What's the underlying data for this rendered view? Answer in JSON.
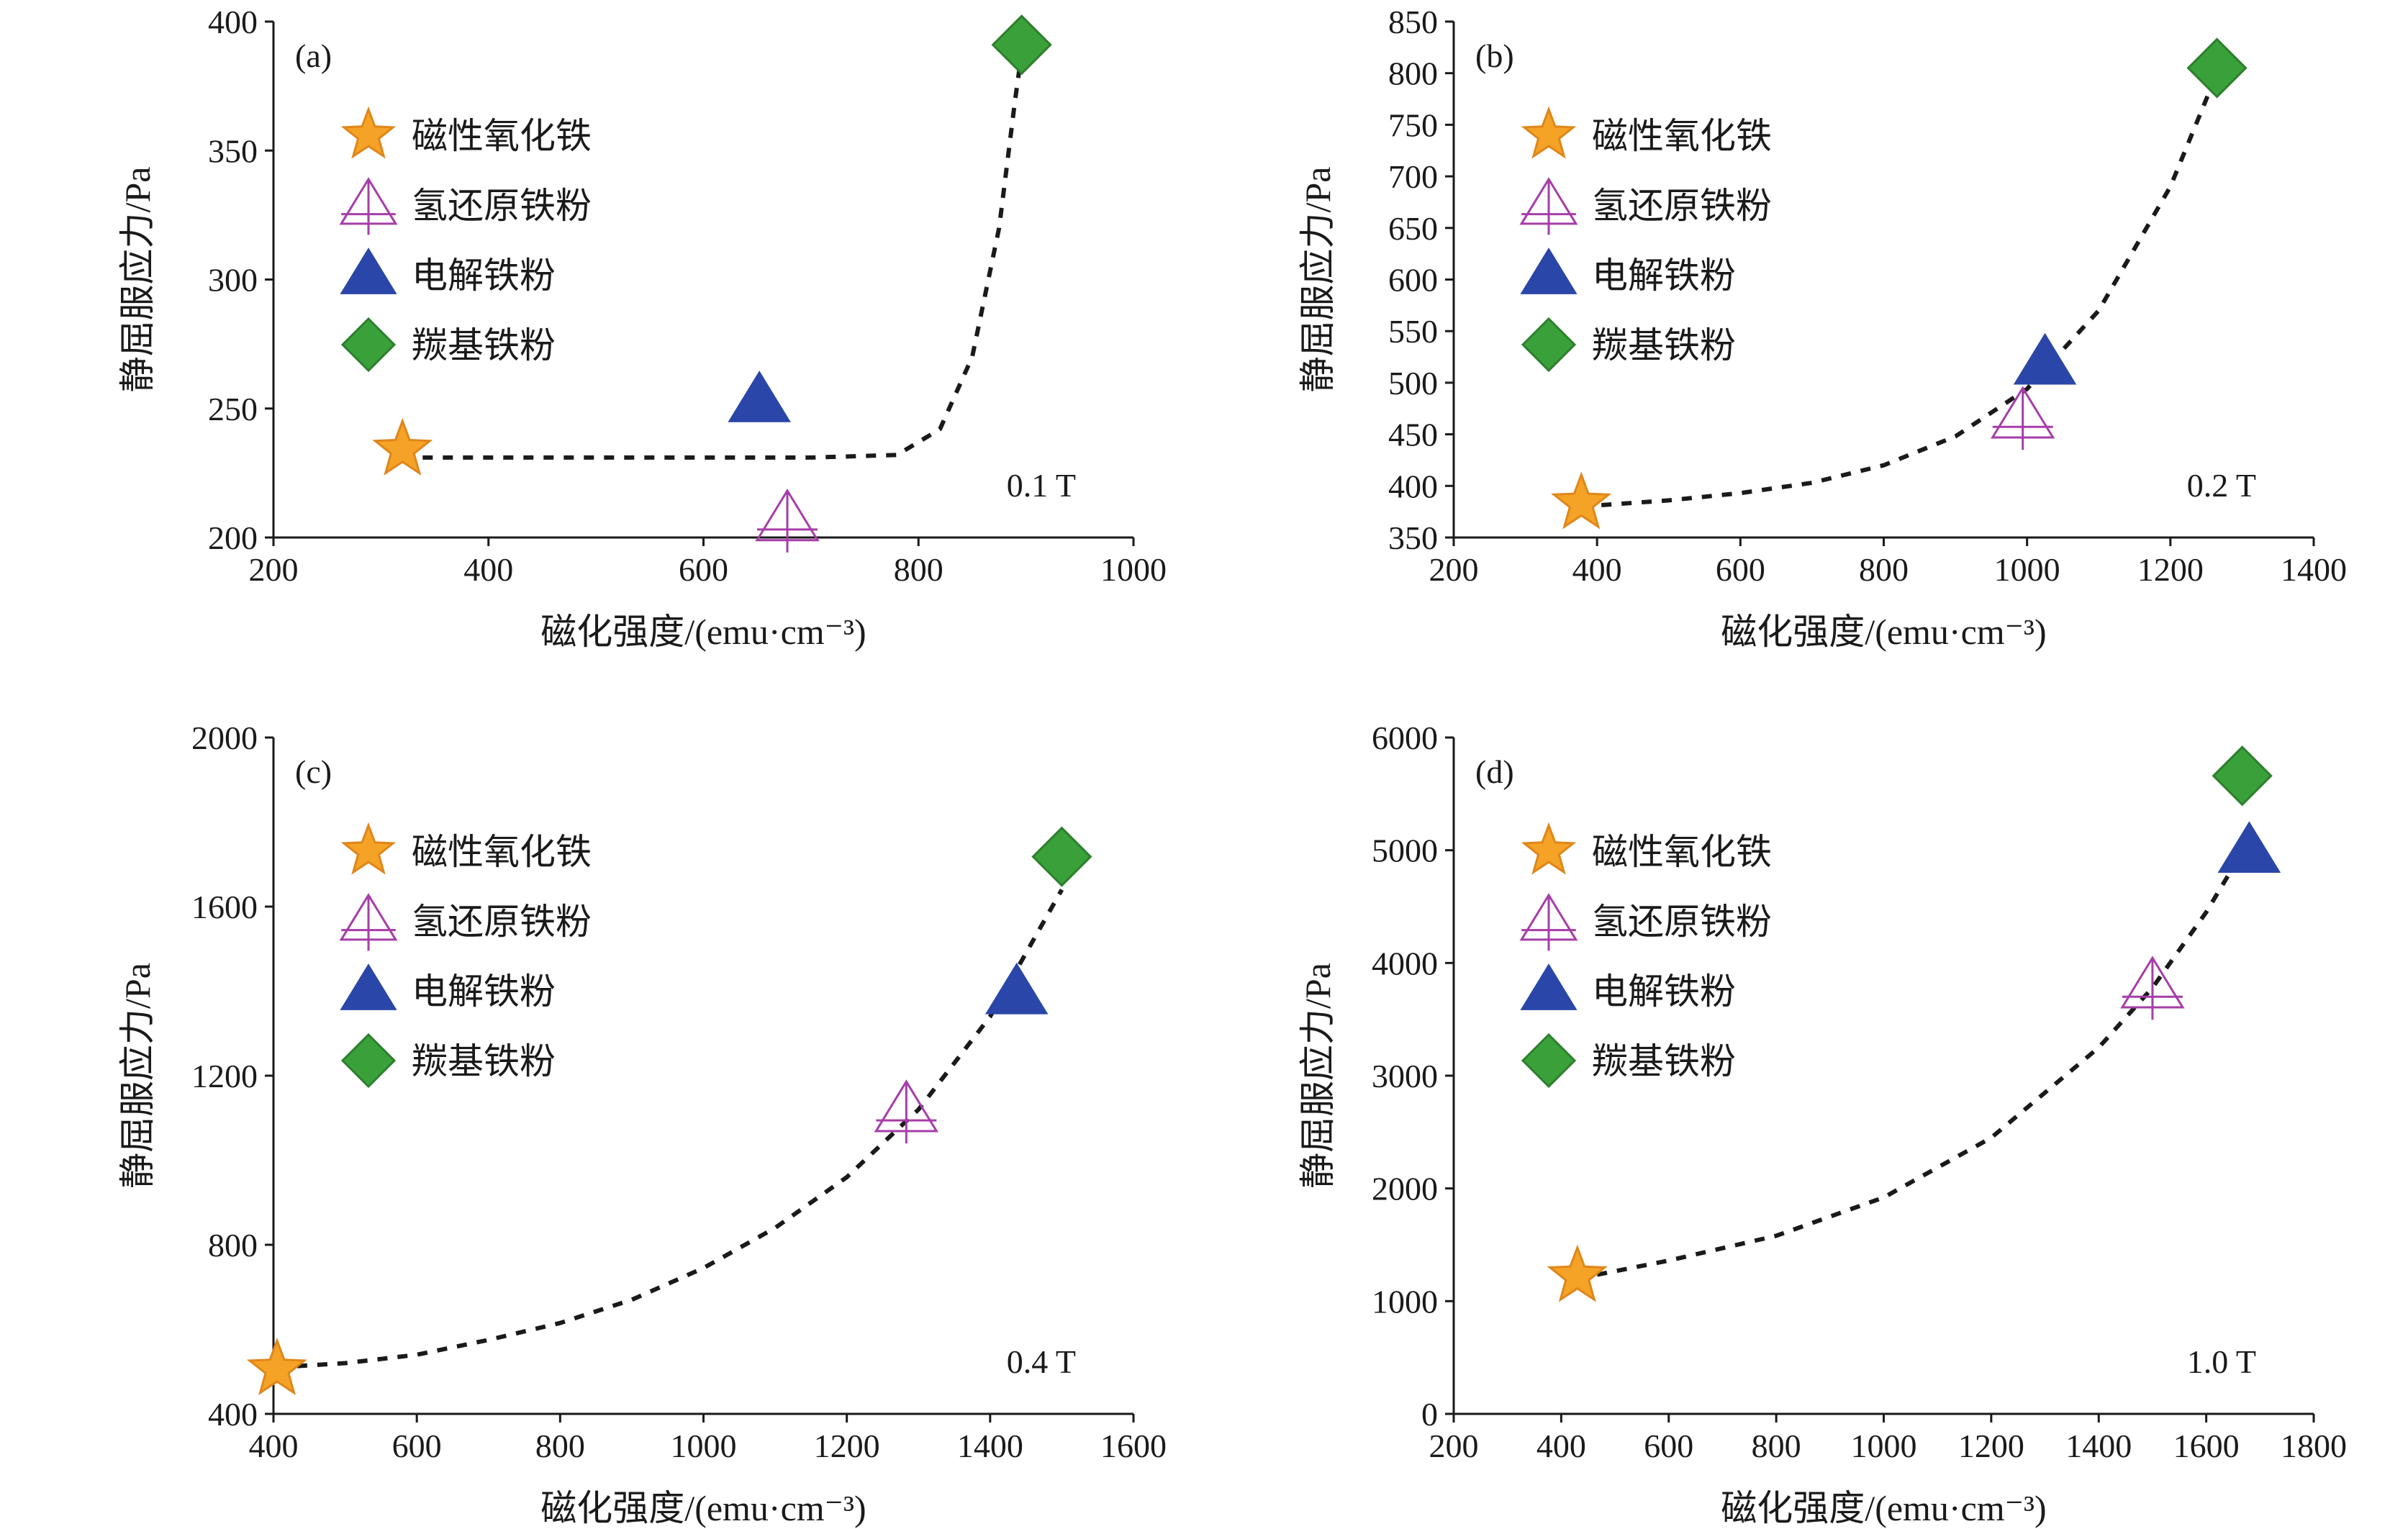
{
  "colors": {
    "star": "#f5a326",
    "star_edge": "#e0861a",
    "hollow_triangle": "#a63da8",
    "triangle": "#2a46a8",
    "diamond": "#3aa13a",
    "diamond_edge": "#2d7f2d",
    "fit_line": "#1a1a1a"
  },
  "chart_data": [
    {
      "type": "scatter",
      "panel": "(a)",
      "field": "0.1 T",
      "xlabel": "磁化强度/(emu·cm⁻³)",
      "ylabel": "静屈服应力/Pa",
      "xlim": [
        200,
        1000
      ],
      "ylim": [
        200,
        400
      ],
      "xticks": [
        "200",
        "400",
        "600",
        "800",
        "1000"
      ],
      "yticks": [
        "200",
        "250",
        "300",
        "350",
        "400"
      ],
      "legend_position": "upper-left",
      "series": [
        {
          "name": "磁性氧化铁",
          "marker": "star",
          "x": 320,
          "y": 234
        },
        {
          "name": "氢还原铁粉",
          "marker": "hollow-triangle",
          "x": 678,
          "y": 207
        },
        {
          "name": "电解铁粉",
          "marker": "triangle",
          "x": 652,
          "y": 253
        },
        {
          "name": "羰基铁粉",
          "marker": "diamond",
          "x": 896,
          "y": 391
        }
      ],
      "fit_curve": {
        "style": "dashed",
        "x": [
          320,
          500,
          700,
          780,
          820,
          850,
          875,
          890,
          896
        ],
        "y": [
          231,
          231,
          231,
          232,
          242,
          270,
          320,
          370,
          388
        ]
      }
    },
    {
      "type": "scatter",
      "panel": "(b)",
      "field": "0.2 T",
      "xlabel": "磁化强度/(emu·cm⁻³)",
      "ylabel": "静屈服应力/Pa",
      "xlim": [
        200,
        1400
      ],
      "ylim": [
        350,
        850
      ],
      "xticks": [
        "200",
        "400",
        "600",
        "800",
        "1000",
        "1200",
        "1400"
      ],
      "yticks": [
        "350",
        "400",
        "450",
        "500",
        "550",
        "600",
        "650",
        "700",
        "750",
        "800",
        "850"
      ],
      "legend_position": "upper-left",
      "series": [
        {
          "name": "磁性氧化铁",
          "marker": "star",
          "x": 378,
          "y": 383
        },
        {
          "name": "氢还原铁粉",
          "marker": "hollow-triangle",
          "x": 994,
          "y": 467
        },
        {
          "name": "电解铁粉",
          "marker": "triangle",
          "x": 1025,
          "y": 519
        },
        {
          "name": "羰基铁粉",
          "marker": "diamond",
          "x": 1265,
          "y": 805
        }
      ],
      "fit_curve": {
        "style": "dashed",
        "x": [
          378,
          500,
          600,
          700,
          800,
          900,
          1000,
          1100,
          1200,
          1265
        ],
        "y": [
          380,
          386,
          393,
          403,
          420,
          448,
          494,
          570,
          690,
          800
        ]
      }
    },
    {
      "type": "scatter",
      "panel": "(c)",
      "field": "0.4 T",
      "xlabel": "磁化强度/(emu·cm⁻³)",
      "ylabel": "静屈服应力/Pa",
      "xlim": [
        400,
        1600
      ],
      "ylim": [
        400,
        2000
      ],
      "xticks": [
        "400",
        "600",
        "800",
        "1000",
        "1200",
        "1400",
        "1600"
      ],
      "yticks": [
        "400",
        "800",
        "1200",
        "1600",
        "2000"
      ],
      "legend_position": "upper-left",
      "series": [
        {
          "name": "磁性氧化铁",
          "marker": "star",
          "x": 405,
          "y": 505
        },
        {
          "name": "氢还原铁粉",
          "marker": "hollow-triangle",
          "x": 1283,
          "y": 1118
        },
        {
          "name": "电解铁粉",
          "marker": "triangle",
          "x": 1437,
          "y": 1396
        },
        {
          "name": "羰基铁粉",
          "marker": "diamond",
          "x": 1500,
          "y": 1718
        }
      ],
      "fit_curve": {
        "style": "dashed",
        "x": [
          405,
          500,
          600,
          700,
          800,
          900,
          1000,
          1100,
          1200,
          1300,
          1400,
          1500
        ],
        "y": [
          510,
          520,
          540,
          575,
          615,
          670,
          745,
          840,
          960,
          1120,
          1340,
          1640
        ]
      }
    },
    {
      "type": "scatter",
      "panel": "(d)",
      "field": "1.0 T",
      "xlabel": "磁化强度/(emu·cm⁻³)",
      "ylabel": "静屈服应力/Pa",
      "xlim": [
        200,
        1800
      ],
      "ylim": [
        0,
        6000
      ],
      "xticks": [
        "200",
        "400",
        "600",
        "800",
        "1000",
        "1200",
        "1400",
        "1600",
        "1800"
      ],
      "yticks": [
        "0",
        "1000",
        "2000",
        "3000",
        "4000",
        "5000",
        "6000"
      ],
      "legend_position": "upper-left",
      "series": [
        {
          "name": "磁性氧化铁",
          "marker": "star",
          "x": 430,
          "y": 1220
        },
        {
          "name": "氢还原铁粉",
          "marker": "hollow-triangle",
          "x": 1500,
          "y": 3790
        },
        {
          "name": "电解铁粉",
          "marker": "triangle",
          "x": 1680,
          "y": 4990
        },
        {
          "name": "羰基铁粉",
          "marker": "diamond",
          "x": 1667,
          "y": 5660
        }
      ],
      "fit_curve": {
        "style": "dashed",
        "x": [
          430,
          600,
          800,
          1000,
          1200,
          1400,
          1500,
          1600,
          1650
        ],
        "y": [
          1200,
          1360,
          1580,
          1920,
          2450,
          3250,
          3780,
          4450,
          4850
        ]
      }
    }
  ]
}
